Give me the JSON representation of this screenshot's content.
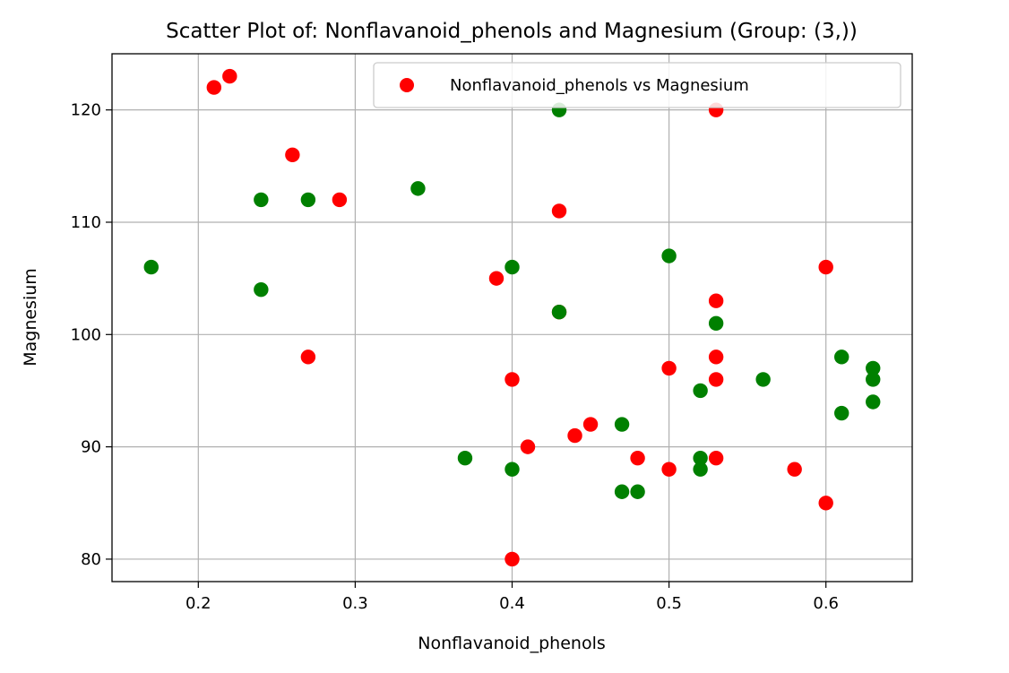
{
  "chart_data": {
    "type": "scatter",
    "title": "Scatter Plot of: Nonflavanoid_phenols and Magnesium (Group: (3,))",
    "xlabel": "Nonflavanoid_phenols",
    "ylabel": "Magnesium",
    "xlim": [
      0.145,
      0.655
    ],
    "ylim": [
      78,
      125
    ],
    "xticks": [
      0.2,
      0.3,
      0.4,
      0.5,
      0.6
    ],
    "xtick_labels": [
      "0.2",
      "0.3",
      "0.4",
      "0.5",
      "0.6"
    ],
    "yticks": [
      80,
      90,
      100,
      110,
      120
    ],
    "ytick_labels": [
      "80",
      "90",
      "100",
      "110",
      "120"
    ],
    "grid": true,
    "legend": {
      "position": "upper right",
      "entries": [
        "Nonflavanoid_phenols vs Magnesium"
      ]
    },
    "series": [
      {
        "name": "Nonflavanoid_phenols vs Magnesium",
        "color": "#ff0000",
        "x": [
          0.21,
          0.22,
          0.26,
          0.27,
          0.29,
          0.39,
          0.4,
          0.4,
          0.41,
          0.43,
          0.43,
          0.44,
          0.45,
          0.48,
          0.5,
          0.5,
          0.53,
          0.53,
          0.53,
          0.53,
          0.53,
          0.58,
          0.6,
          0.6
        ],
        "y": [
          122,
          123,
          116,
          98,
          112,
          105,
          96,
          80,
          90,
          111,
          102,
          91,
          92,
          89,
          97,
          88,
          120,
          103,
          98,
          96,
          89,
          88,
          106,
          85
        ]
      },
      {
        "color": "#008000",
        "x": [
          0.17,
          0.24,
          0.24,
          0.27,
          0.34,
          0.37,
          0.4,
          0.4,
          0.43,
          0.43,
          0.47,
          0.47,
          0.48,
          0.5,
          0.52,
          0.52,
          0.52,
          0.53,
          0.56,
          0.61,
          0.61,
          0.63,
          0.63,
          0.63
        ],
        "y": [
          106,
          112,
          104,
          112,
          113,
          89,
          106,
          88,
          120,
          102,
          92,
          86,
          86,
          107,
          95,
          89,
          88,
          101,
          96,
          98,
          93,
          97,
          96,
          94
        ]
      }
    ]
  }
}
